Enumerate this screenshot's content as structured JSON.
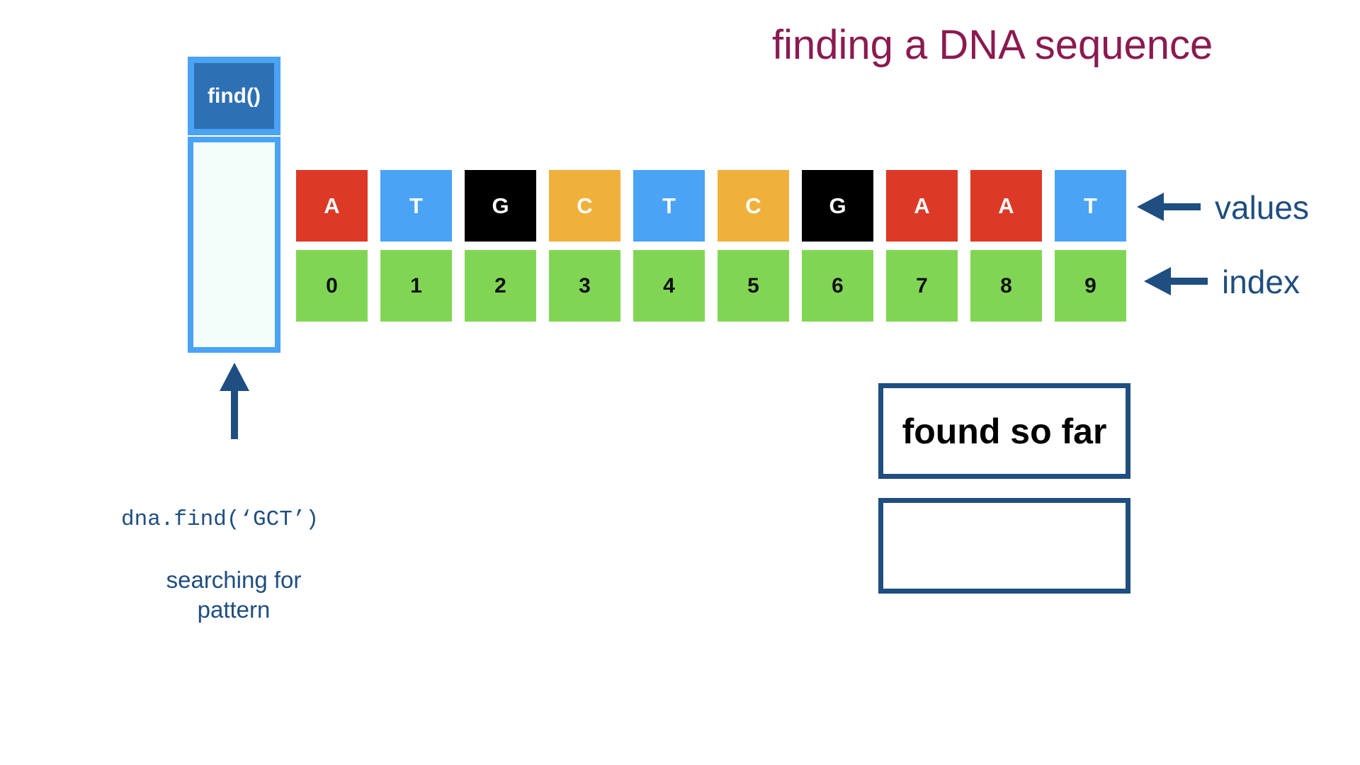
{
  "title": "finding a DNA sequence",
  "find_box": {
    "label": "find()"
  },
  "values": [
    {
      "letter": "A",
      "color": "#dc3a27"
    },
    {
      "letter": "T",
      "color": "#4aa3f5"
    },
    {
      "letter": "G",
      "color": "#000000"
    },
    {
      "letter": "C",
      "color": "#f0b13c"
    },
    {
      "letter": "T",
      "color": "#4aa3f5"
    },
    {
      "letter": "C",
      "color": "#f0b13c"
    },
    {
      "letter": "G",
      "color": "#000000"
    },
    {
      "letter": "A",
      "color": "#dc3a27"
    },
    {
      "letter": "A",
      "color": "#dc3a27"
    },
    {
      "letter": "T",
      "color": "#4aa3f5"
    }
  ],
  "indices": [
    "0",
    "1",
    "2",
    "3",
    "4",
    "5",
    "6",
    "7",
    "8",
    "9"
  ],
  "labels": {
    "values": "values",
    "index": "index"
  },
  "found_so_far": {
    "label": "found so far",
    "value": ""
  },
  "code": "dna.find(‘GCT’)",
  "caption": {
    "line1": "searching for",
    "line2": "pattern"
  },
  "colors": {
    "title": "#8b1a50",
    "arrow": "#1f4e80",
    "find_border": "#4aa3f5",
    "find_header": "#2e70b4",
    "index_cell": "#80d654"
  }
}
